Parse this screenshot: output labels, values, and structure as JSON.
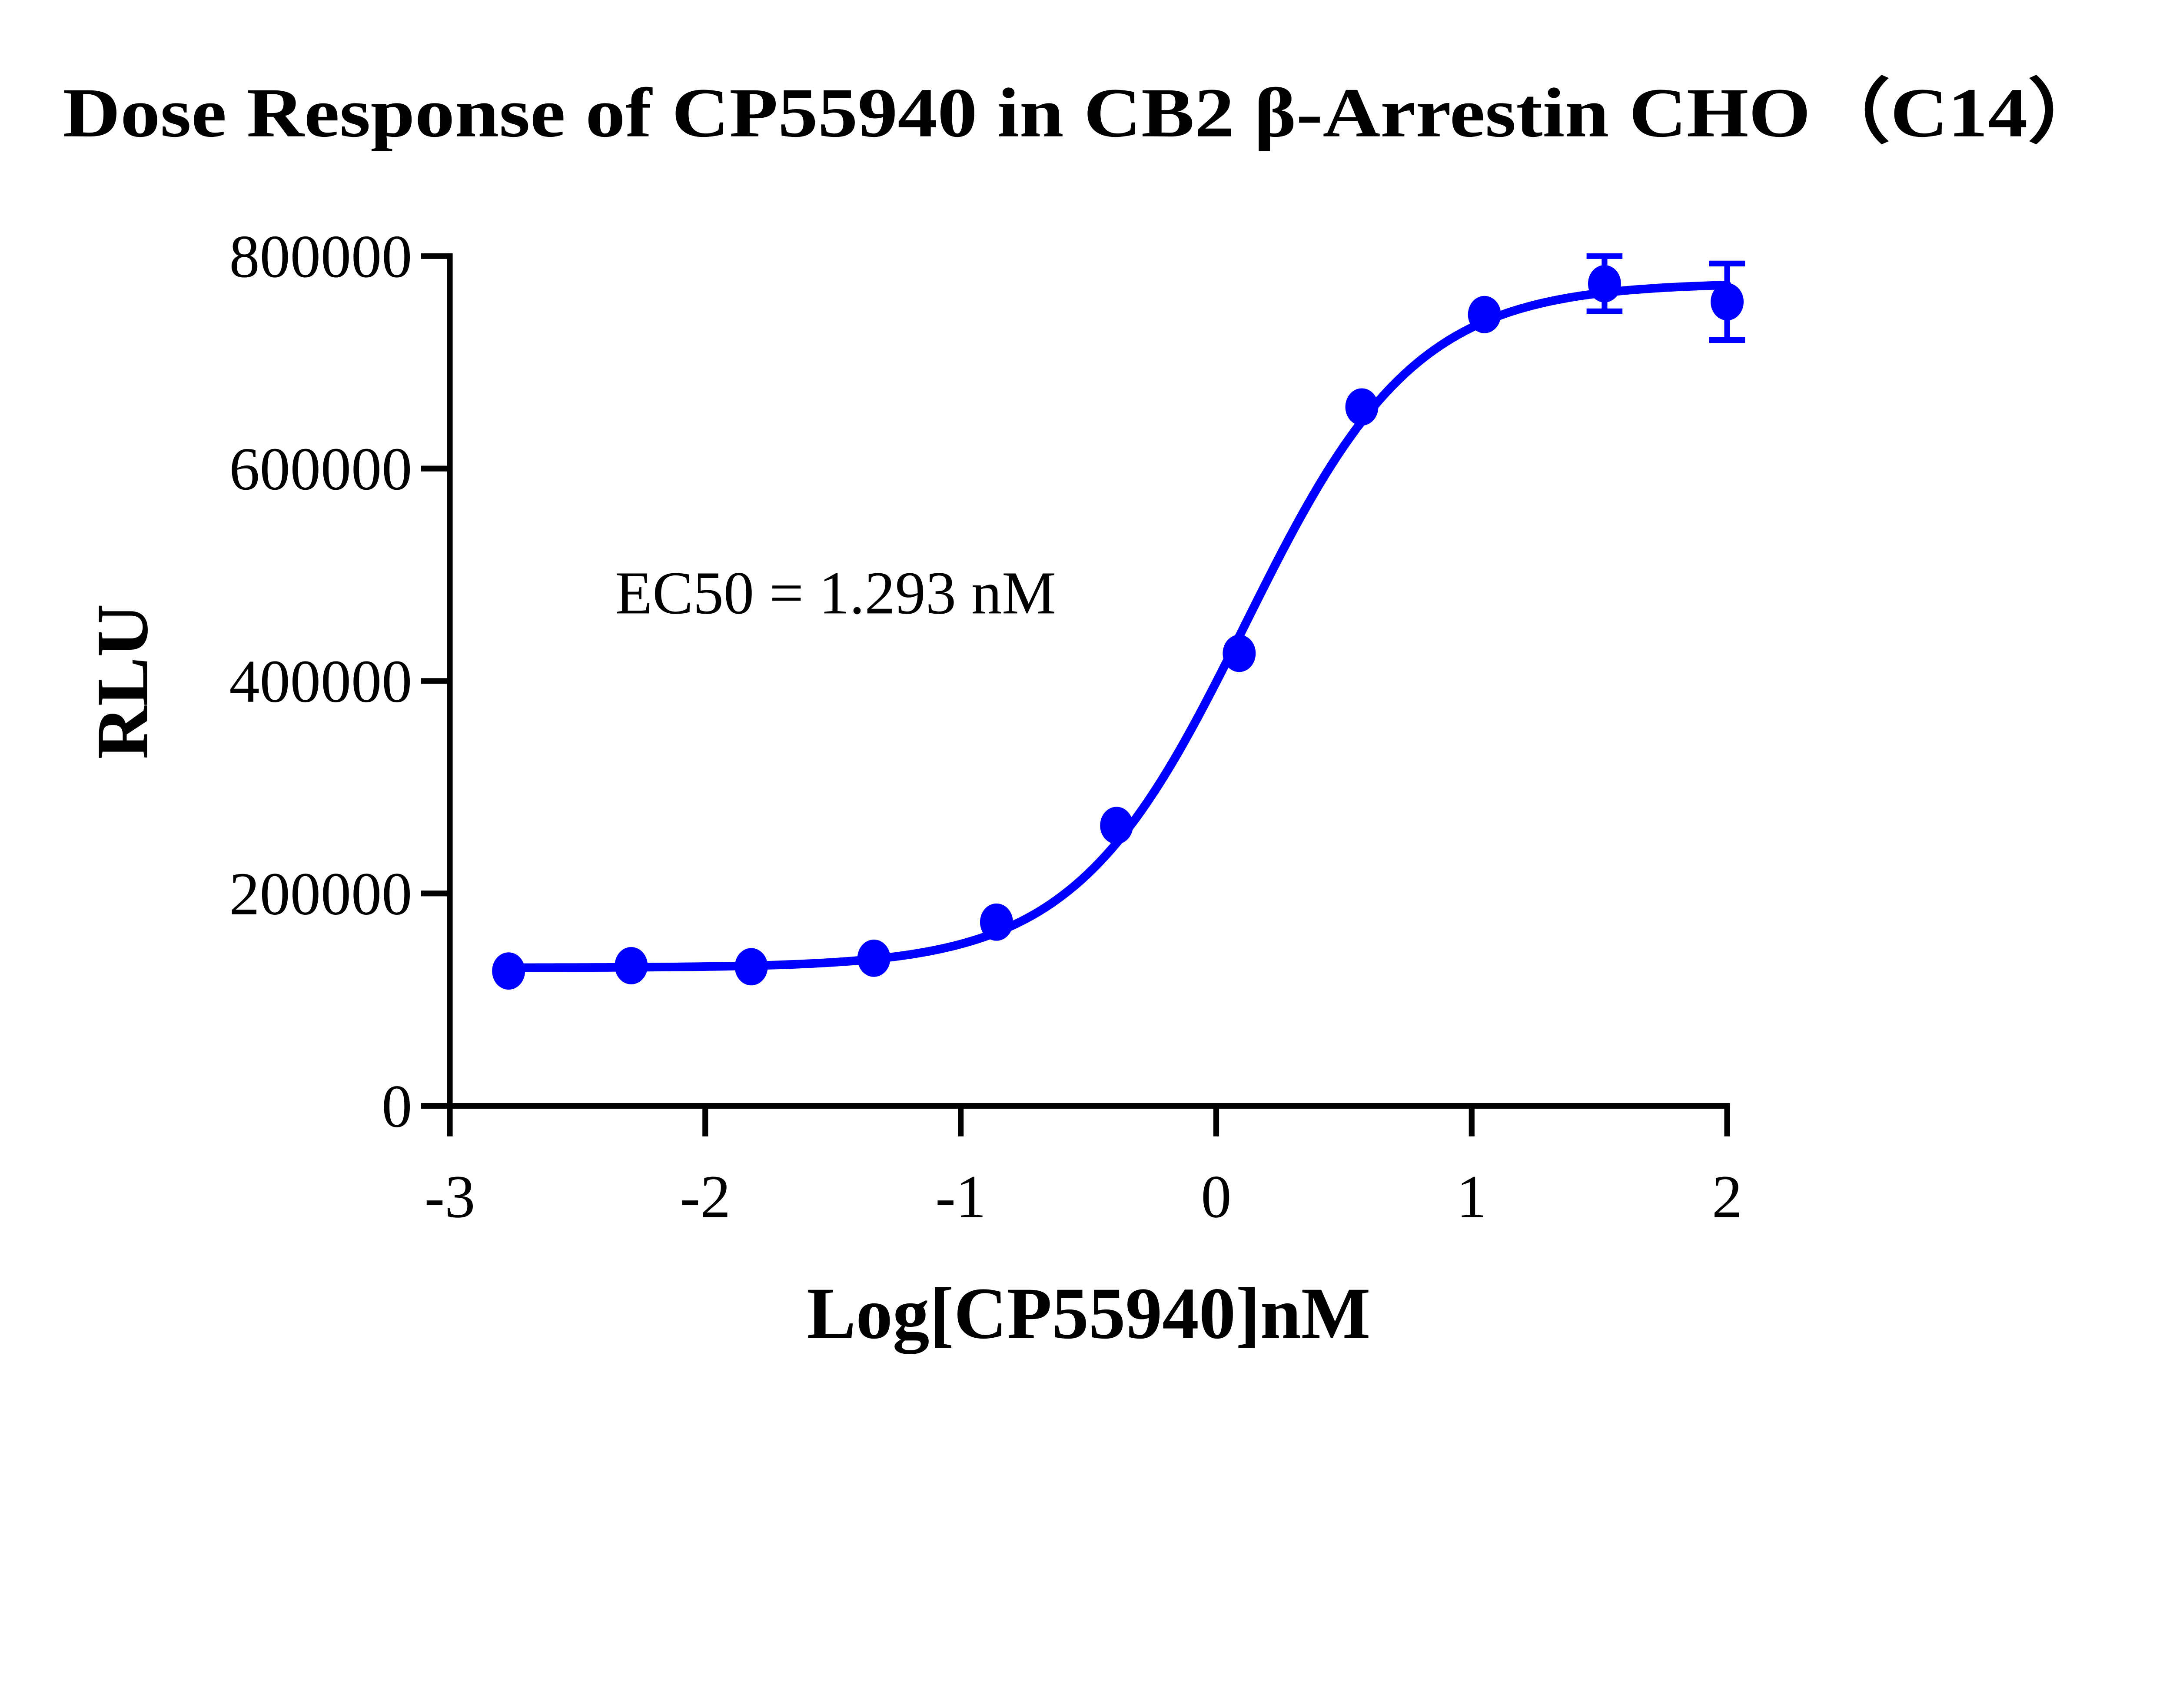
{
  "chart_data": {
    "type": "scatter",
    "title": "Dose Response of CP55940 in CB2 β-Arrestin CHO（C14）",
    "xlabel": "Log[CP55940]nM",
    "ylabel": "RLU",
    "xlim": [
      -3,
      2
    ],
    "ylim": [
      0,
      800000
    ],
    "xticks": [
      "-3",
      "-2",
      "-1",
      "0",
      "1",
      "2"
    ],
    "yticks": [
      "0",
      "200000",
      "400000",
      "600000",
      "800000"
    ],
    "grid": false,
    "color": "#0000ff",
    "annotation": "EC50 = 1.293 nM",
    "series": [
      {
        "x": [
          -2.77,
          -2.29,
          -1.82,
          -1.34,
          -0.86,
          -0.39,
          0.09,
          0.57,
          1.05,
          1.52,
          2.0
        ],
        "y": [
          127000,
          132000,
          131000,
          139000,
          173000,
          264000,
          426000,
          658000,
          745000,
          774000,
          757000
        ],
        "error": [
          0,
          0,
          0,
          0,
          0,
          0,
          0,
          0,
          0,
          26000,
          36000
        ]
      }
    ],
    "fit": {
      "model": "4PL",
      "bottom": 130000,
      "top": 775000,
      "logEC50": 0.112,
      "hill": 1.3
    }
  }
}
